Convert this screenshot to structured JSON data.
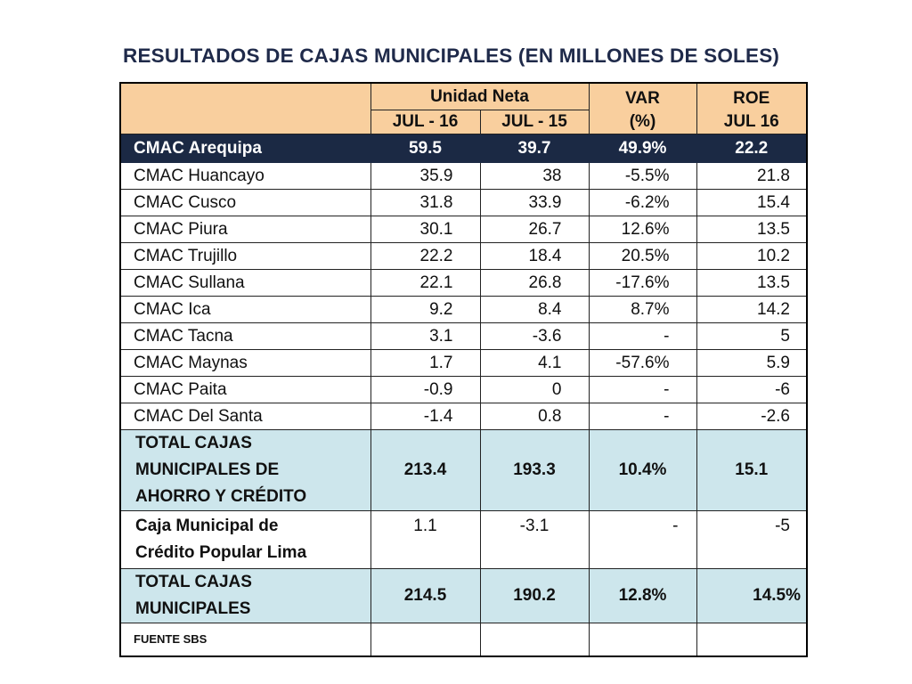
{
  "title": "RESULTADOS DE CAJAS MUNICIPALES (EN MILLONES DE SOLES)",
  "header": {
    "group_label": "Unidad Neta",
    "col_jul16": "JUL - 16",
    "col_jul15": "JUL - 15",
    "var_line1": "VAR",
    "var_line2": "(%)",
    "roe_line1": "ROE",
    "roe_line2": "JUL 16"
  },
  "highlight": {
    "name": "CMAC Arequipa",
    "jul16": "59.5",
    "jul15": "39.7",
    "var": "49.9%",
    "roe": "22.2"
  },
  "rows": [
    {
      "name": "CMAC Huancayo",
      "jul16": "35.9",
      "jul15": "38",
      "var": "-5.5%",
      "roe": "21.8"
    },
    {
      "name": "CMAC Cusco",
      "jul16": "31.8",
      "jul15": "33.9",
      "var": "-6.2%",
      "roe": "15.4"
    },
    {
      "name": "CMAC Piura",
      "jul16": "30.1",
      "jul15": "26.7",
      "var": "12.6%",
      "roe": "13.5"
    },
    {
      "name": "CMAC Trujillo",
      "jul16": "22.2",
      "jul15": "18.4",
      "var": "20.5%",
      "roe": "10.2"
    },
    {
      "name": "CMAC Sullana",
      "jul16": "22.1",
      "jul15": "26.8",
      "var": "-17.6%",
      "roe": "13.5"
    },
    {
      "name": "CMAC Ica",
      "jul16": "9.2",
      "jul15": "8.4",
      "var": "8.7%",
      "roe": "14.2"
    },
    {
      "name": "CMAC Tacna",
      "jul16": "3.1",
      "jul15": "-3.6",
      "var": "-",
      "roe": "5"
    },
    {
      "name": "CMAC Maynas",
      "jul16": "1.7",
      "jul15": "4.1",
      "var": "-57.6%",
      "roe": "5.9"
    },
    {
      "name": "CMAC Paita",
      "jul16": "-0.9",
      "jul15": "0",
      "var": "-",
      "roe": "-6"
    },
    {
      "name": "CMAC Del Santa",
      "jul16": "-1.4",
      "jul15": "0.8",
      "var": "-",
      "roe": "-2.6"
    }
  ],
  "total_cmac": {
    "name_lines": [
      "TOTAL CAJAS",
      "MUNICIPALES DE",
      "AHORRO Y CRÉDITO"
    ],
    "jul16": "213.4",
    "jul15": "193.3",
    "var": "10.4%",
    "roe": "15.1"
  },
  "lima": {
    "name_lines": [
      "Caja Municipal de",
      "Crédito Popular Lima"
    ],
    "jul16": "1.1",
    "jul15": "-3.1",
    "var": "-",
    "roe": "-5"
  },
  "total_all": {
    "name_lines": [
      "TOTAL CAJAS",
      "MUNICIPALES"
    ],
    "jul16": "214.5",
    "jul15": "190.2",
    "var": "12.8%",
    "roe": "14.5%"
  },
  "footer": {
    "source": "FUENTE SBS"
  },
  "colors": {
    "header_bg": "#f9cf9e",
    "highlight_bg": "#1b2944",
    "total_bg": "#cde6ec",
    "title": "#1f2a4a"
  }
}
